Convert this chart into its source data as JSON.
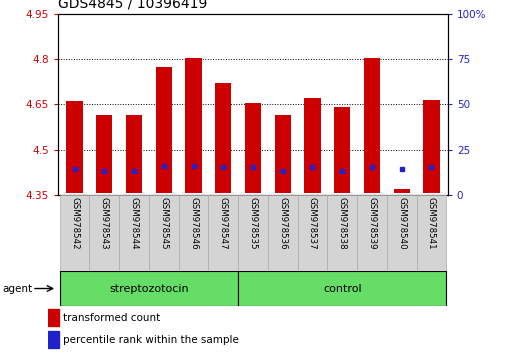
{
  "title": "GDS4845 / 10396419",
  "samples": [
    "GSM978542",
    "GSM978543",
    "GSM978544",
    "GSM978545",
    "GSM978546",
    "GSM978547",
    "GSM978535",
    "GSM978536",
    "GSM978537",
    "GSM978538",
    "GSM978539",
    "GSM978540",
    "GSM978541"
  ],
  "bar_tops": [
    4.66,
    4.615,
    4.615,
    4.775,
    4.805,
    4.72,
    4.655,
    4.615,
    4.67,
    4.64,
    4.805,
    4.37,
    4.665
  ],
  "bar_bottoms": [
    4.355,
    4.355,
    4.355,
    4.355,
    4.355,
    4.355,
    4.355,
    4.355,
    4.355,
    4.355,
    4.355,
    4.355,
    4.355
  ],
  "blue_dots": [
    4.435,
    4.428,
    4.428,
    4.447,
    4.447,
    4.442,
    4.442,
    4.428,
    4.442,
    4.428,
    4.442,
    4.435,
    4.442
  ],
  "ylim_left": [
    4.35,
    4.95
  ],
  "ylim_right": [
    0,
    100
  ],
  "yticks_left": [
    4.35,
    4.5,
    4.65,
    4.8,
    4.95
  ],
  "yticks_right": [
    0,
    25,
    50,
    75,
    100
  ],
  "ytick_labels_left": [
    "4.35",
    "4.5",
    "4.65",
    "4.8",
    "4.95"
  ],
  "ytick_labels_right": [
    "0",
    "25",
    "50",
    "75",
    "100%"
  ],
  "gridlines": [
    4.5,
    4.65,
    4.8
  ],
  "bar_color": "#cc0000",
  "dot_color": "#2222cc",
  "group1_label": "streptozotocin",
  "group2_label": "control",
  "group1_indices": [
    0,
    1,
    2,
    3,
    4,
    5
  ],
  "group2_indices": [
    6,
    7,
    8,
    9,
    10,
    11,
    12
  ],
  "group_color": "#66dd66",
  "agent_label": "agent",
  "legend1": "transformed count",
  "legend2": "percentile rank within the sample",
  "bar_width": 0.55,
  "left_tick_color": "#cc0000",
  "right_tick_color": "#2222cc",
  "title_fontsize": 10,
  "tick_fontsize": 7.5,
  "sample_fontsize": 6.2,
  "group_fontsize": 8
}
